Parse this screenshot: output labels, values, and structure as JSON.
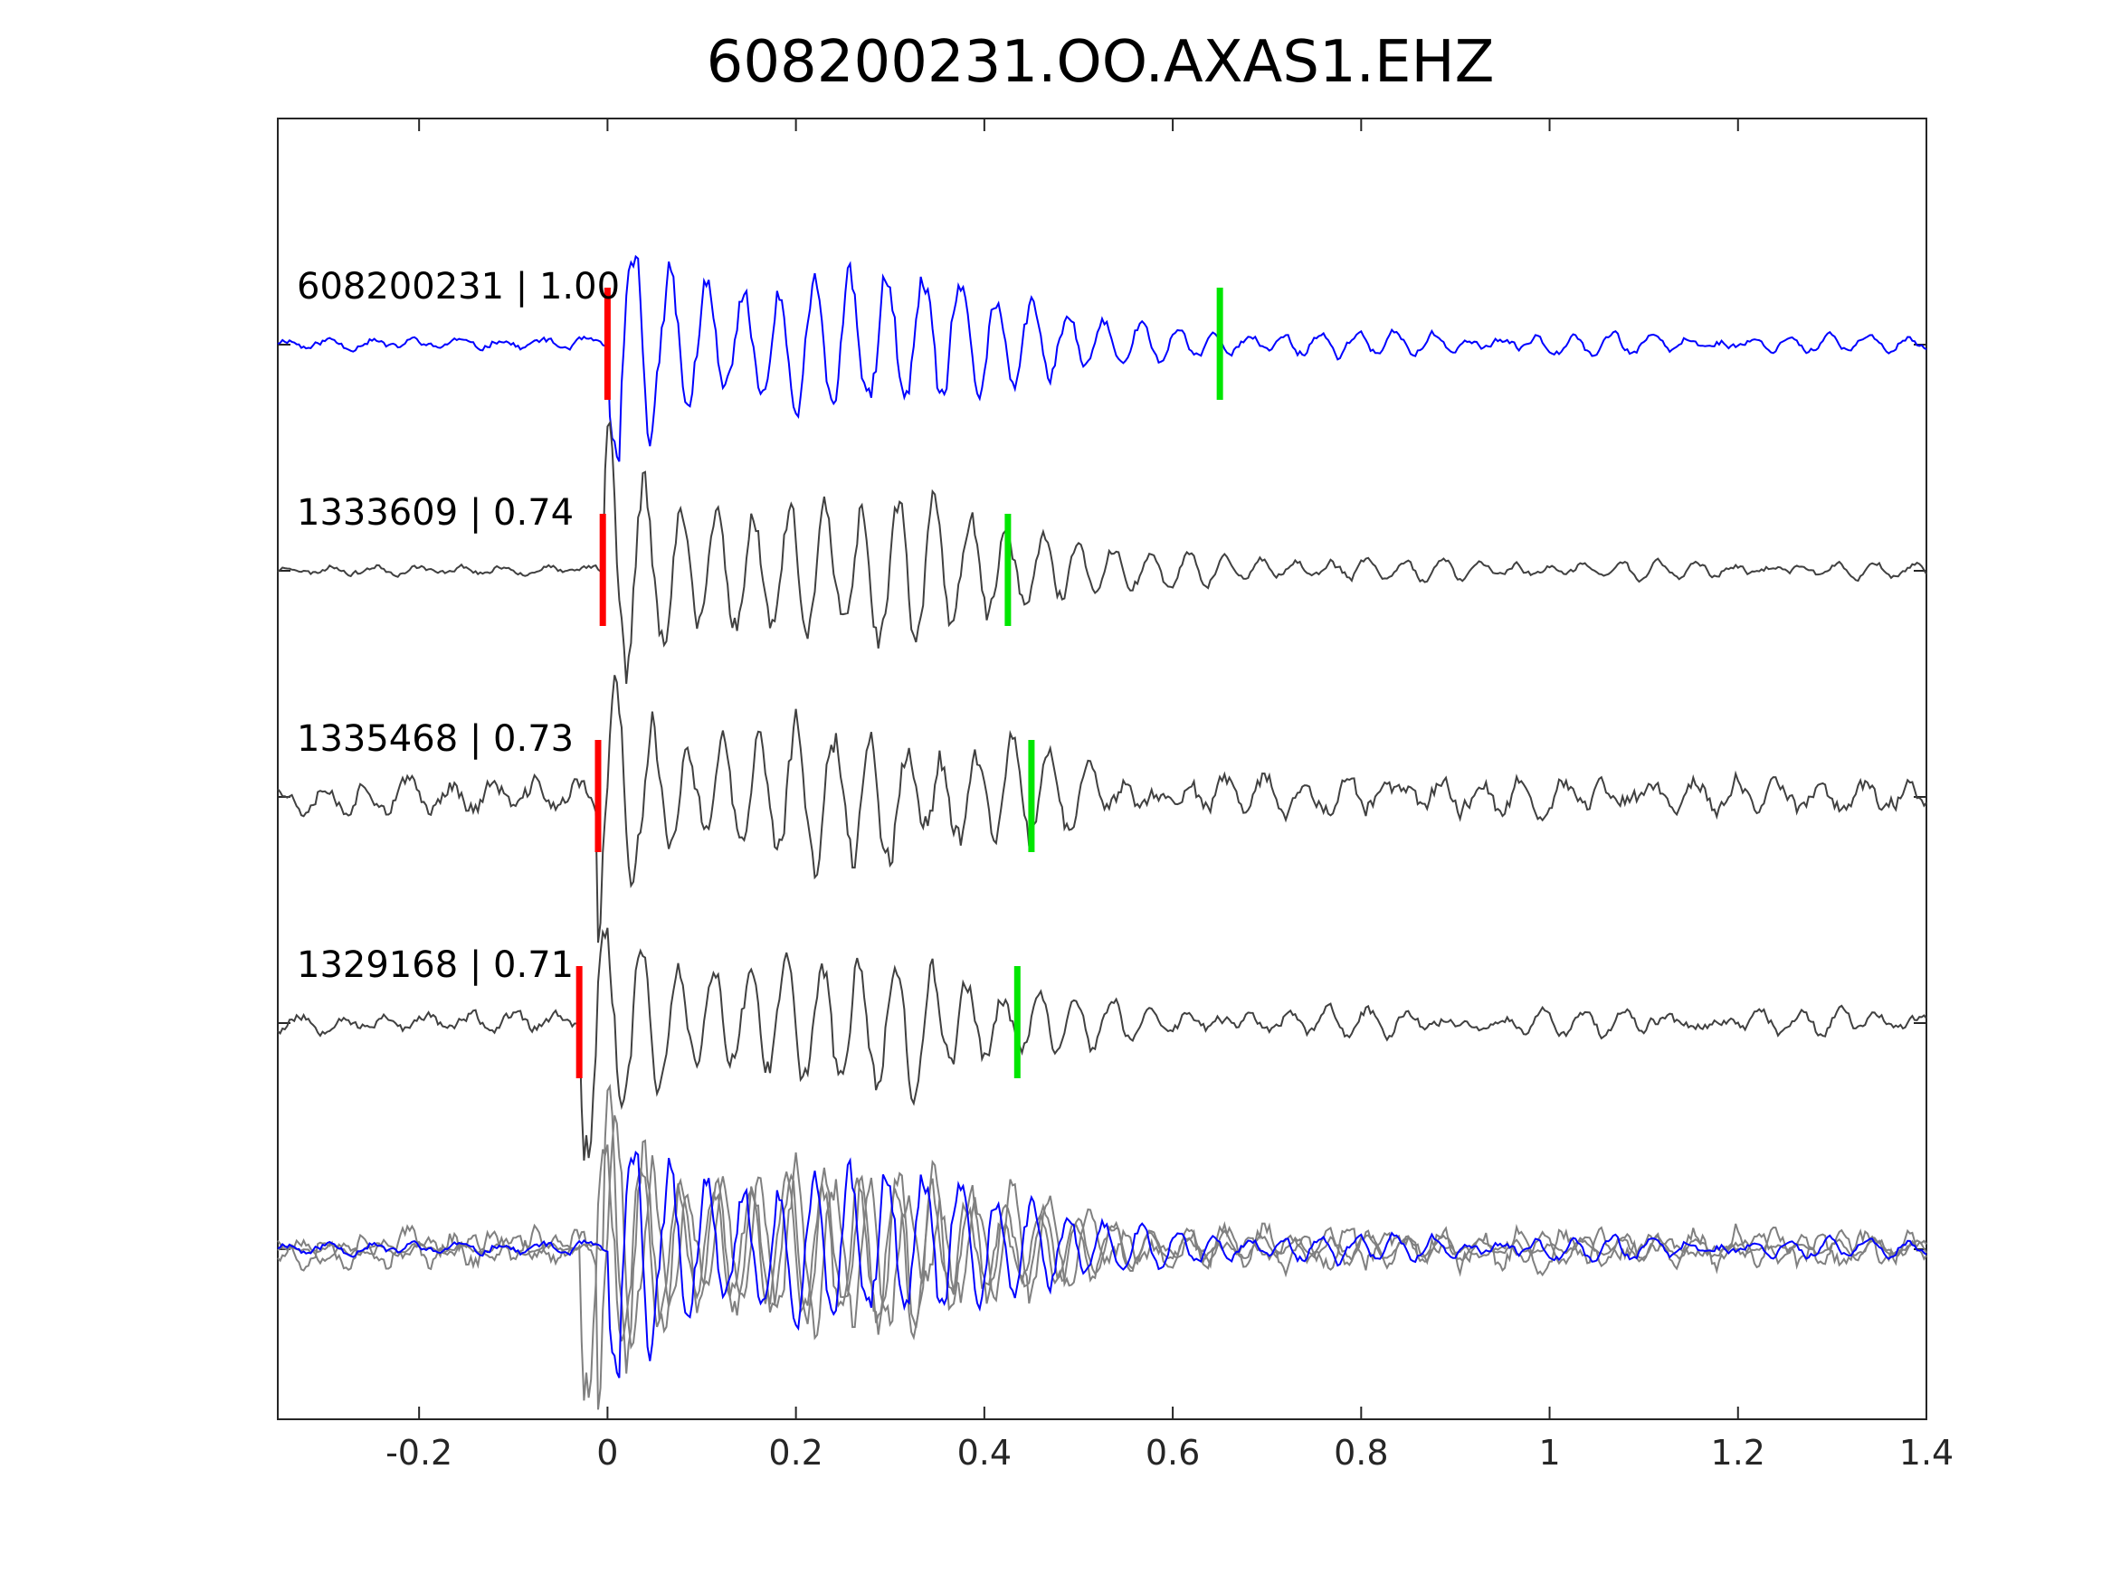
{
  "chart_data": {
    "type": "line",
    "title": "608200231.OO.AXAS1.EHZ",
    "xlabel": "",
    "ylabel": "",
    "xlim": [
      -0.35,
      1.4
    ],
    "x_ticks": [
      -0.2,
      0,
      0.2,
      0.4,
      0.6,
      0.8,
      1,
      1.2,
      1.4
    ],
    "x_tick_labels": [
      "-0.2",
      "0",
      "0.2",
      "0.4",
      "0.6",
      "0.8",
      "1",
      "1.2",
      "1.4"
    ],
    "y_tick_labels_shown": false,
    "grid": false,
    "traces": [
      {
        "label": "608200231 | 1.00",
        "color": "#0000ff",
        "p_pick": 0.0,
        "s_pick": 0.65,
        "seed": 11,
        "noise": 0.12,
        "amp": 1.0
      },
      {
        "label": "1333609 | 0.74",
        "color": "#404040",
        "p_pick": -0.005,
        "s_pick": 0.425,
        "seed": 23,
        "noise": 0.1,
        "amp": 1.0
      },
      {
        "label": "1335468 | 0.73",
        "color": "#404040",
        "p_pick": -0.01,
        "s_pick": 0.45,
        "seed": 37,
        "noise": 0.35,
        "amp": 0.95
      },
      {
        "label": "1329168 | 0.71",
        "color": "#404040",
        "p_pick": -0.03,
        "s_pick": 0.435,
        "seed": 53,
        "noise": 0.2,
        "amp": 0.95
      }
    ],
    "overlay": {
      "color_main": "#0000ff",
      "color_others": "#808080"
    },
    "p_pick_color": "#ff0000",
    "s_pick_color": "#00e600"
  }
}
